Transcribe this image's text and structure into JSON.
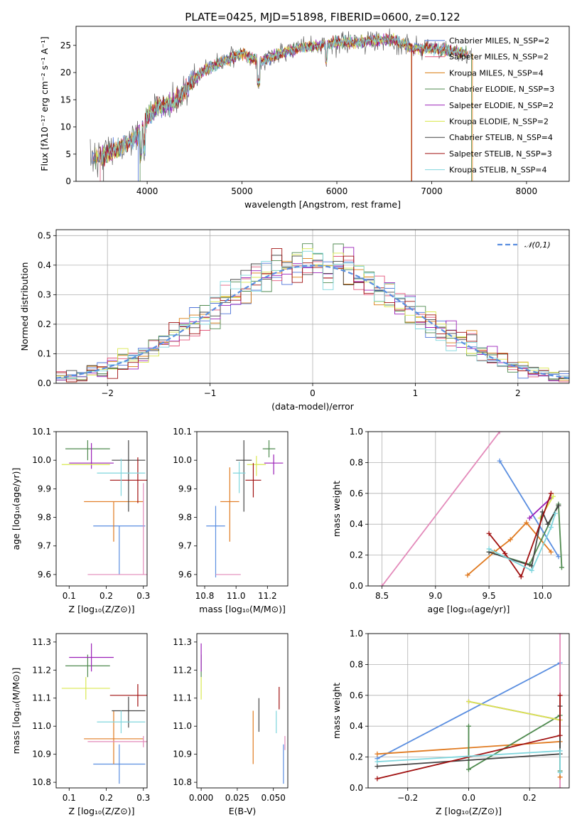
{
  "chart_data": [
    {
      "type": "line",
      "title": "PLATE=0425, MJD=51898, FIBERID=0600, z=0.122",
      "xlabel": "wavelength [Angstrom, rest frame]",
      "ylabel": "Flux [fλ10⁻¹⁷ erg cm⁻² s⁻¹ A⁻¹]",
      "xlim": [
        3250,
        8450
      ],
      "ylim": [
        0,
        28.5
      ],
      "xticks": [
        4000,
        5000,
        6000,
        7000,
        8000
      ],
      "yticks": [
        0,
        5,
        10,
        15,
        20,
        25
      ],
      "x_range_of_data": [
        3400,
        7420
      ],
      "envelope_x": [
        3400,
        3500,
        3600,
        3700,
        3800,
        3900,
        4000,
        4100,
        4200,
        4300,
        4400,
        4600,
        4800,
        5000,
        5200,
        5400,
        5600,
        5800,
        6000,
        6200,
        6400,
        6600,
        6800,
        7000,
        7200,
        7420
      ],
      "envelope_y": [
        4.2,
        4.5,
        5.2,
        6.0,
        7.0,
        8.5,
        11.5,
        13.5,
        14.0,
        14.8,
        17.0,
        20.5,
        22.0,
        23.5,
        22.0,
        23.5,
        24.5,
        25.0,
        25.5,
        25.5,
        26.0,
        26.0,
        24.5,
        24.5,
        24.0,
        23.5
      ],
      "legend_position": "upper right",
      "series": [
        {
          "name": "Chabrier MILES, N_SSP=2",
          "color": "#4c72d8"
        },
        {
          "name": "Salpeter MILES, N_SSP=2",
          "color": "#e3577b"
        },
        {
          "name": "Kroupa MILES, N_SSP=4",
          "color": "#d97d10"
        },
        {
          "name": "Chabrier ELODIE, N_SSP=3",
          "color": "#4f8a4f"
        },
        {
          "name": "Salpeter ELODIE, N_SSP=2",
          "color": "#9b20b8"
        },
        {
          "name": "Kroupa ELODIE, N_SSP=2",
          "color": "#d9e84f"
        },
        {
          "name": "Chabrier STELIB, N_SSP=4",
          "color": "#444444"
        },
        {
          "name": "Salpeter STELIB, N_SSP=3",
          "color": "#a01010"
        },
        {
          "name": "Kroupa STELIB, N_SSP=4",
          "color": "#7fd6dd"
        }
      ]
    },
    {
      "type": "line",
      "subtype": "step-histogram",
      "xlabel": "(data-model)/error",
      "ylabel": "Normed distribution",
      "xlim": [
        -2.5,
        2.5
      ],
      "ylim": [
        0,
        0.52
      ],
      "xticks": [
        -2,
        -1,
        0,
        1,
        2
      ],
      "yticks": [
        0.0,
        0.1,
        0.2,
        0.3,
        0.4,
        0.5
      ],
      "bins": [
        -2.5,
        -2.4,
        -2.3,
        -2.2,
        -2.1,
        -2.0,
        -1.9,
        -1.8,
        -1.7,
        -1.6,
        -1.5,
        -1.4,
        -1.3,
        -1.2,
        -1.1,
        -1.0,
        -0.9,
        -0.8,
        -0.7,
        -0.6,
        -0.5,
        -0.4,
        -0.3,
        -0.2,
        -0.1,
        0.0,
        0.1,
        0.2,
        0.3,
        0.4,
        0.5,
        0.6,
        0.7,
        0.8,
        0.9,
        1.0,
        1.1,
        1.2,
        1.3,
        1.4,
        1.5,
        1.6,
        1.7,
        1.8,
        1.9,
        2.0,
        2.1,
        2.2,
        2.3,
        2.4,
        2.5
      ],
      "reference_curve": {
        "name": "𝒩(0,1)",
        "function": "normal pdf, mean 0, sigma 1",
        "color": "#5a8ee0",
        "style": "dashed"
      },
      "legend_position": "upper right",
      "grid": true
    },
    {
      "type": "scatter",
      "subtype": "errorbar",
      "xlabel": "Z [log₁₀(Z/Z⊙)]",
      "ylabel": "age  [log₁₀(age/yr)]",
      "xlim": [
        0.065,
        0.31
      ],
      "ylim": [
        9.56,
        10.1
      ],
      "xticks": [
        0.1,
        0.2,
        0.3
      ],
      "yticks": [
        9.6,
        9.7,
        9.8,
        9.9,
        10.0,
        10.1
      ],
      "points": [
        {
          "x": 0.235,
          "xerr": 0.07,
          "y": 9.77,
          "yerr_lo": 0.17,
          "yerr_hi": 0.0,
          "color": "#5a8ee0"
        },
        {
          "x": 0.22,
          "xerr": 0.08,
          "y": 9.855,
          "yerr_lo": 0.14,
          "yerr_hi": 0.0,
          "color": "#e07a20"
        },
        {
          "x": 0.3,
          "xerr": 0.15,
          "y": 9.6,
          "yerr_lo": 0.0,
          "yerr_hi": 0.32,
          "color": "#e38aba"
        },
        {
          "x": 0.15,
          "xerr": 0.06,
          "y": 10.04,
          "yerr_lo": 0.04,
          "yerr_hi": 0.03,
          "color": "#4f8a4f"
        },
        {
          "x": 0.16,
          "xerr": 0.06,
          "y": 9.99,
          "yerr_lo": 0.02,
          "yerr_hi": 0.07,
          "color": "#9b20b8"
        },
        {
          "x": 0.145,
          "xerr": 0.065,
          "y": 9.985,
          "yerr_lo": 0.0,
          "yerr_hi": 0.0,
          "color": "#d9e84f"
        },
        {
          "x": 0.26,
          "xerr": 0.045,
          "y": 10.0,
          "yerr_lo": 0.18,
          "yerr_hi": 0.07,
          "color": "#444444"
        },
        {
          "x": 0.285,
          "xerr": 0.075,
          "y": 9.93,
          "yerr_lo": 0.08,
          "yerr_hi": 0.08,
          "color": "#a01010"
        },
        {
          "x": 0.24,
          "xerr": 0.065,
          "y": 9.955,
          "yerr_lo": 0.08,
          "yerr_hi": 0.05,
          "color": "#7fd6dd"
        }
      ]
    },
    {
      "type": "scatter",
      "subtype": "errorbar",
      "xlabel": "mass [log₁₀(M/M⊙)]",
      "xlim": [
        10.75,
        11.33
      ],
      "ylim": [
        9.56,
        10.1
      ],
      "xticks": [
        10.8,
        11.0,
        11.2
      ],
      "yticks": [
        9.6,
        9.7,
        9.8,
        9.9,
        10.0,
        10.1
      ],
      "points": [
        {
          "x": 10.87,
          "xerr": 0.06,
          "y": 9.77,
          "yerr_lo": 0.18,
          "yerr_hi": 0.07,
          "color": "#5a8ee0"
        },
        {
          "x": 10.96,
          "xerr": 0.06,
          "y": 9.855,
          "yerr_lo": 0.14,
          "yerr_hi": 0.12,
          "color": "#e07a20"
        },
        {
          "x": 10.95,
          "xerr": 0.08,
          "y": 9.6,
          "yerr_lo": 0.0,
          "yerr_hi": 0.0,
          "color": "#e38aba"
        },
        {
          "x": 11.21,
          "xerr": 0.04,
          "y": 10.04,
          "yerr_lo": 0.03,
          "yerr_hi": 0.03,
          "color": "#4f8a4f"
        },
        {
          "x": 11.24,
          "xerr": 0.06,
          "y": 9.99,
          "yerr_lo": 0.04,
          "yerr_hi": 0.03,
          "color": "#9b20b8"
        },
        {
          "x": 11.13,
          "xerr": 0.06,
          "y": 9.985,
          "yerr_lo": 0.04,
          "yerr_hi": 0.03,
          "color": "#d9e84f"
        },
        {
          "x": 11.05,
          "xerr": 0.05,
          "y": 10.0,
          "yerr_lo": 0.18,
          "yerr_hi": 0.07,
          "color": "#444444"
        },
        {
          "x": 11.11,
          "xerr": 0.05,
          "y": 9.93,
          "yerr_lo": 0.06,
          "yerr_hi": 0.06,
          "color": "#a01010"
        },
        {
          "x": 11.02,
          "xerr": 0.04,
          "y": 9.955,
          "yerr_lo": 0.07,
          "yerr_hi": 0.04,
          "color": "#7fd6dd"
        }
      ]
    },
    {
      "type": "line",
      "xlabel": "age  [log₁₀(age/yr)]",
      "ylabel": "mass weight",
      "xlim": [
        8.37,
        10.25
      ],
      "ylim": [
        0,
        1.0
      ],
      "xticks": [
        8.5,
        9.0,
        9.5,
        10.0
      ],
      "yticks": [
        0.0,
        0.2,
        0.4,
        0.6,
        0.8,
        1.0
      ],
      "grid": true,
      "series": [
        {
          "color": "#5a8ee0",
          "x": [
            9.6,
            10.15
          ],
          "y": [
            0.81,
            0.19
          ]
        },
        {
          "color": "#e38aba",
          "x": [
            8.5,
            9.6
          ],
          "y": [
            0.0,
            1.0
          ]
        },
        {
          "color": "#e07a20",
          "x": [
            9.3,
            9.55,
            9.7,
            9.85,
            10.08
          ],
          "y": [
            0.07,
            0.22,
            0.3,
            0.41,
            0.22
          ]
        },
        {
          "color": "#4f8a4f",
          "x": [
            9.5,
            9.88,
            10.15,
            10.18
          ],
          "y": [
            0.22,
            0.14,
            0.53,
            0.12
          ]
        },
        {
          "color": "#9b20b8",
          "x": [
            9.88,
            10.08
          ],
          "y": [
            0.44,
            0.57
          ]
        },
        {
          "color": "#d9e84f",
          "x": [
            9.98,
            10.1
          ],
          "y": [
            0.44,
            0.58
          ]
        },
        {
          "color": "#444444",
          "x": [
            9.5,
            9.9,
            10.0,
            10.05,
            10.15
          ],
          "y": [
            0.22,
            0.13,
            0.48,
            0.4,
            0.52
          ]
        },
        {
          "color": "#a01010",
          "x": [
            9.5,
            9.65,
            9.8,
            10.08
          ],
          "y": [
            0.34,
            0.21,
            0.06,
            0.6
          ]
        },
        {
          "color": "#7fd6dd",
          "x": [
            9.5,
            9.9,
            10.08,
            10.12
          ],
          "y": [
            0.24,
            0.1,
            0.38,
            0.47
          ]
        }
      ]
    },
    {
      "type": "scatter",
      "subtype": "errorbar",
      "xlabel": "Z [log₁₀(Z/Z⊙)]",
      "ylabel": "mass [log₁₀(M/M⊙)]",
      "xlim": [
        0.065,
        0.31
      ],
      "ylim": [
        10.78,
        11.33
      ],
      "xticks": [
        0.1,
        0.2,
        0.3
      ],
      "yticks": [
        10.8,
        10.9,
        11.0,
        11.1,
        11.2,
        11.3
      ],
      "points": [
        {
          "x": 0.235,
          "xerr": 0.07,
          "y": 10.865,
          "yerr_lo": 0.07,
          "yerr_hi": 0.07,
          "color": "#5a8ee0"
        },
        {
          "x": 0.22,
          "xerr": 0.08,
          "y": 10.955,
          "yerr_lo": 0.09,
          "yerr_hi": 0.1,
          "color": "#e07a20"
        },
        {
          "x": 0.3,
          "xerr": 0.15,
          "y": 10.945,
          "yerr_lo": 0.02,
          "yerr_hi": 0.02,
          "color": "#e38aba"
        },
        {
          "x": 0.15,
          "xerr": 0.06,
          "y": 11.215,
          "yerr_lo": 0.04,
          "yerr_hi": 0.04,
          "color": "#4f8a4f"
        },
        {
          "x": 0.16,
          "xerr": 0.06,
          "y": 11.245,
          "yerr_lo": 0.05,
          "yerr_hi": 0.05,
          "color": "#9b20b8"
        },
        {
          "x": 0.145,
          "xerr": 0.065,
          "y": 11.135,
          "yerr_lo": 0.04,
          "yerr_hi": 0.04,
          "color": "#d9e84f"
        },
        {
          "x": 0.26,
          "xerr": 0.045,
          "y": 11.055,
          "yerr_lo": 0.06,
          "yerr_hi": 0.05,
          "color": "#444444"
        },
        {
          "x": 0.285,
          "xerr": 0.075,
          "y": 11.11,
          "yerr_lo": 0.04,
          "yerr_hi": 0.04,
          "color": "#a01010"
        },
        {
          "x": 0.24,
          "xerr": 0.065,
          "y": 11.015,
          "yerr_lo": 0.04,
          "yerr_hi": 0.04,
          "color": "#7fd6dd"
        }
      ]
    },
    {
      "type": "scatter",
      "subtype": "errorbar",
      "xlabel": "E(B-V)",
      "xlim": [
        -0.003,
        0.06
      ],
      "ylim": [
        10.78,
        11.33
      ],
      "xticks": [
        0.0,
        0.025,
        0.05
      ],
      "yticks": [
        10.8,
        10.9,
        11.0,
        11.1,
        11.2,
        11.3
      ],
      "points": [
        {
          "x": 0.057,
          "y": 10.865,
          "yerr_lo": 0.07,
          "yerr_hi": 0.07,
          "color": "#5a8ee0"
        },
        {
          "x": 0.036,
          "y": 10.955,
          "yerr_lo": 0.09,
          "yerr_hi": 0.1,
          "color": "#e07a20"
        },
        {
          "x": 0.058,
          "y": 10.945,
          "yerr_lo": 0.03,
          "yerr_hi": 0.02,
          "color": "#e38aba"
        },
        {
          "x": 0.0,
          "y": 11.215,
          "yerr_lo": 0.04,
          "yerr_hi": 0.04,
          "color": "#4f8a4f"
        },
        {
          "x": 0.0,
          "y": 11.245,
          "yerr_lo": 0.05,
          "yerr_hi": 0.05,
          "color": "#9b20b8"
        },
        {
          "x": 0.0,
          "y": 11.135,
          "yerr_lo": 0.04,
          "yerr_hi": 0.04,
          "color": "#d9e84f"
        },
        {
          "x": 0.04,
          "y": 11.04,
          "yerr_lo": 0.06,
          "yerr_hi": 0.06,
          "color": "#444444"
        },
        {
          "x": 0.054,
          "y": 11.1,
          "yerr_lo": 0.04,
          "yerr_hi": 0.04,
          "color": "#a01010"
        },
        {
          "x": 0.052,
          "y": 11.015,
          "yerr_lo": 0.04,
          "yerr_hi": 0.04,
          "color": "#7fd6dd"
        }
      ]
    },
    {
      "type": "line",
      "xlabel": "Z [log₁₀(Z/Z⊙)]",
      "ylabel": "mass weight",
      "xlim": [
        -0.33,
        0.33
      ],
      "ylim": [
        0,
        1.0
      ],
      "xticks": [
        -0.2,
        0.0,
        0.2
      ],
      "yticks": [
        0.0,
        0.2,
        0.4,
        0.6,
        0.8,
        1.0
      ],
      "grid": true,
      "series": [
        {
          "color": "#5a8ee0",
          "x": [
            -0.3,
            0.3
          ],
          "y": [
            0.19,
            0.81
          ]
        },
        {
          "color": "#e38aba",
          "x": [
            0.3,
            0.3
          ],
          "y": [
            0.0,
            1.0
          ]
        },
        {
          "color": "#e07a20",
          "x": [
            -0.3,
            0.3,
            0.3
          ],
          "y": [
            0.22,
            0.3,
            0.07
          ]
        },
        {
          "color": "#4f8a4f",
          "x": [
            0.0,
            0.0,
            0.3,
            0.3
          ],
          "y": [
            0.4,
            0.12,
            0.47,
            0.11
          ]
        },
        {
          "color": "#9b20b8",
          "x": [
            0.0,
            0.3
          ],
          "y": [
            0.56,
            0.44
          ]
        },
        {
          "color": "#d9e84f",
          "x": [
            0.0,
            0.3
          ],
          "y": [
            0.56,
            0.44
          ]
        },
        {
          "color": "#444444",
          "x": [
            -0.3,
            0.3,
            0.3
          ],
          "y": [
            0.14,
            0.22,
            0.53
          ]
        },
        {
          "color": "#a01010",
          "x": [
            -0.3,
            0.3,
            0.3
          ],
          "y": [
            0.06,
            0.34,
            0.6
          ]
        },
        {
          "color": "#7fd6dd",
          "x": [
            -0.3,
            0.3,
            0.3
          ],
          "y": [
            0.17,
            0.24,
            0.1
          ]
        }
      ]
    }
  ]
}
